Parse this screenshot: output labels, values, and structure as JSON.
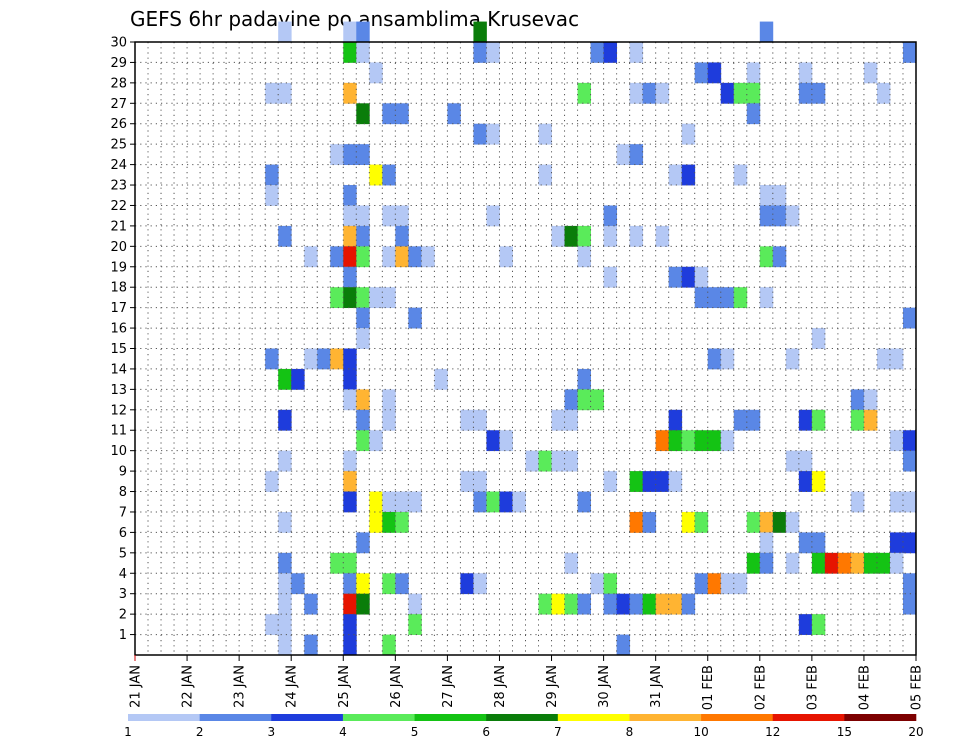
{
  "chart_data": {
    "type": "heatmap",
    "title": "GEFS 6hr padavine po ansamblima Krusevac",
    "y_ticks": [
      "1",
      "2",
      "3",
      "4",
      "5",
      "6",
      "7",
      "8",
      "9",
      "10",
      "11",
      "12",
      "13",
      "14",
      "15",
      "16",
      "17",
      "18",
      "19",
      "20",
      "21",
      "22",
      "23",
      "24",
      "25",
      "26",
      "27",
      "28",
      "29",
      "30"
    ],
    "x_ticks": [
      "21 JAN",
      "22 JAN",
      "23 JAN",
      "24 JAN",
      "25 JAN",
      "26 JAN",
      "27 JAN",
      "28 JAN",
      "29 JAN",
      "30 JAN",
      "31 JAN",
      "01 FEB",
      "02 FEB",
      "03 FEB",
      "04 FEB",
      "05 FEB"
    ],
    "y_range": [
      0,
      30
    ],
    "x_range": [
      0,
      60
    ],
    "grid": true,
    "colorbar": {
      "labels": [
        "1",
        "2",
        "3",
        "4",
        "5",
        "6",
        "7",
        "8",
        "10",
        "12",
        "15",
        "20"
      ],
      "colors": [
        "#b4c8f5",
        "#5a87e6",
        "#1e3cdc",
        "#5aeb5a",
        "#14c314",
        "#0a7d0a",
        "#ffff00",
        "#ffb432",
        "#ff7800",
        "#e61400",
        "#7d0000"
      ]
    },
    "cells": [
      [
        30,
        11,
        1
      ],
      [
        30,
        16,
        1
      ],
      [
        30,
        17,
        2
      ],
      [
        30,
        26,
        6
      ],
      [
        30,
        48,
        2
      ],
      [
        29,
        16,
        5
      ],
      [
        29,
        17,
        1
      ],
      [
        29,
        26,
        2
      ],
      [
        29,
        27,
        1
      ],
      [
        29,
        35,
        2
      ],
      [
        29,
        36,
        3
      ],
      [
        29,
        38,
        1
      ],
      [
        29,
        59,
        2
      ],
      [
        28,
        18,
        1
      ],
      [
        28,
        43,
        2
      ],
      [
        28,
        44,
        3
      ],
      [
        28,
        47,
        1
      ],
      [
        28,
        51,
        1
      ],
      [
        28,
        56,
        1
      ],
      [
        27,
        10,
        1
      ],
      [
        27,
        11,
        1
      ],
      [
        27,
        16,
        8
      ],
      [
        27,
        34,
        4
      ],
      [
        27,
        38,
        1
      ],
      [
        27,
        39,
        2
      ],
      [
        27,
        40,
        1
      ],
      [
        27,
        45,
        3
      ],
      [
        27,
        46,
        4
      ],
      [
        27,
        47,
        4
      ],
      [
        27,
        51,
        2
      ],
      [
        27,
        52,
        2
      ],
      [
        27,
        57,
        1
      ],
      [
        26,
        17,
        6
      ],
      [
        26,
        19,
        2
      ],
      [
        26,
        20,
        2
      ],
      [
        26,
        24,
        2
      ],
      [
        26,
        47,
        2
      ],
      [
        25,
        26,
        2
      ],
      [
        25,
        27,
        1
      ],
      [
        25,
        31,
        1
      ],
      [
        25,
        42,
        1
      ],
      [
        24,
        15,
        1
      ],
      [
        24,
        16,
        2
      ],
      [
        24,
        17,
        2
      ],
      [
        24,
        37,
        1
      ],
      [
        24,
        38,
        2
      ],
      [
        23,
        10,
        2
      ],
      [
        23,
        18,
        7
      ],
      [
        23,
        19,
        2
      ],
      [
        23,
        31,
        1
      ],
      [
        23,
        41,
        1
      ],
      [
        23,
        42,
        3
      ],
      [
        23,
        46,
        1
      ],
      [
        22,
        10,
        1
      ],
      [
        22,
        16,
        2
      ],
      [
        22,
        48,
        1
      ],
      [
        22,
        49,
        1
      ],
      [
        21,
        16,
        1
      ],
      [
        21,
        17,
        1
      ],
      [
        21,
        19,
        1
      ],
      [
        21,
        20,
        1
      ],
      [
        21,
        27,
        1
      ],
      [
        21,
        36,
        2
      ],
      [
        21,
        48,
        2
      ],
      [
        21,
        49,
        2
      ],
      [
        21,
        50,
        1
      ],
      [
        20,
        11,
        2
      ],
      [
        20,
        16,
        8
      ],
      [
        20,
        17,
        2
      ],
      [
        20,
        20,
        2
      ],
      [
        20,
        32,
        1
      ],
      [
        20,
        33,
        6
      ],
      [
        20,
        34,
        4
      ],
      [
        20,
        36,
        1
      ],
      [
        20,
        38,
        1
      ],
      [
        20,
        40,
        1
      ],
      [
        19,
        13,
        1
      ],
      [
        19,
        15,
        2
      ],
      [
        19,
        16,
        10
      ],
      [
        19,
        17,
        4
      ],
      [
        19,
        19,
        1
      ],
      [
        19,
        20,
        8
      ],
      [
        19,
        21,
        2
      ],
      [
        19,
        22,
        1
      ],
      [
        19,
        28,
        1
      ],
      [
        19,
        34,
        1
      ],
      [
        19,
        48,
        4
      ],
      [
        19,
        49,
        2
      ],
      [
        18,
        16,
        2
      ],
      [
        18,
        36,
        1
      ],
      [
        18,
        41,
        2
      ],
      [
        18,
        42,
        3
      ],
      [
        18,
        43,
        1
      ],
      [
        17,
        15,
        4
      ],
      [
        17,
        16,
        6
      ],
      [
        17,
        17,
        4
      ],
      [
        17,
        18,
        1
      ],
      [
        17,
        19,
        1
      ],
      [
        17,
        43,
        2
      ],
      [
        17,
        44,
        2
      ],
      [
        17,
        45,
        2
      ],
      [
        17,
        46,
        4
      ],
      [
        17,
        48,
        1
      ],
      [
        16,
        17,
        2
      ],
      [
        16,
        21,
        2
      ],
      [
        16,
        59,
        2
      ],
      [
        15,
        17,
        1
      ],
      [
        15,
        52,
        1
      ],
      [
        14,
        10,
        2
      ],
      [
        14,
        13,
        1
      ],
      [
        14,
        14,
        2
      ],
      [
        14,
        15,
        8
      ],
      [
        14,
        16,
        3
      ],
      [
        14,
        44,
        2
      ],
      [
        14,
        45,
        1
      ],
      [
        14,
        50,
        1
      ],
      [
        14,
        57,
        1
      ],
      [
        14,
        58,
        1
      ],
      [
        13,
        11,
        5
      ],
      [
        13,
        12,
        3
      ],
      [
        13,
        16,
        3
      ],
      [
        13,
        23,
        1
      ],
      [
        13,
        34,
        2
      ],
      [
        12,
        16,
        1
      ],
      [
        12,
        17,
        8
      ],
      [
        12,
        19,
        1
      ],
      [
        12,
        33,
        2
      ],
      [
        12,
        34,
        4
      ],
      [
        12,
        35,
        4
      ],
      [
        12,
        55,
        2
      ],
      [
        12,
        56,
        1
      ],
      [
        11,
        11,
        3
      ],
      [
        11,
        17,
        2
      ],
      [
        11,
        19,
        1
      ],
      [
        11,
        25,
        1
      ],
      [
        11,
        26,
        1
      ],
      [
        11,
        32,
        1
      ],
      [
        11,
        33,
        1
      ],
      [
        11,
        41,
        3
      ],
      [
        11,
        46,
        2
      ],
      [
        11,
        47,
        2
      ],
      [
        11,
        51,
        3
      ],
      [
        11,
        52,
        4
      ],
      [
        11,
        55,
        4
      ],
      [
        11,
        56,
        8
      ],
      [
        10,
        17,
        4
      ],
      [
        10,
        18,
        1
      ],
      [
        10,
        27,
        3
      ],
      [
        10,
        28,
        1
      ],
      [
        10,
        40,
        9
      ],
      [
        10,
        41,
        5
      ],
      [
        10,
        42,
        4
      ],
      [
        10,
        43,
        5
      ],
      [
        10,
        44,
        5
      ],
      [
        10,
        45,
        1
      ],
      [
        10,
        58,
        1
      ],
      [
        10,
        59,
        3
      ],
      [
        9,
        11,
        1
      ],
      [
        9,
        16,
        1
      ],
      [
        9,
        30,
        1
      ],
      [
        9,
        31,
        4
      ],
      [
        9,
        32,
        1
      ],
      [
        9,
        33,
        1
      ],
      [
        9,
        50,
        1
      ],
      [
        9,
        51,
        1
      ],
      [
        9,
        59,
        2
      ],
      [
        8,
        10,
        1
      ],
      [
        8,
        16,
        8
      ],
      [
        8,
        25,
        1
      ],
      [
        8,
        26,
        1
      ],
      [
        8,
        36,
        1
      ],
      [
        8,
        38,
        5
      ],
      [
        8,
        39,
        3
      ],
      [
        8,
        40,
        3
      ],
      [
        8,
        41,
        1
      ],
      [
        8,
        51,
        3
      ],
      [
        8,
        52,
        7
      ],
      [
        7,
        16,
        3
      ],
      [
        7,
        18,
        7
      ],
      [
        7,
        19,
        1
      ],
      [
        7,
        20,
        1
      ],
      [
        7,
        21,
        1
      ],
      [
        7,
        26,
        2
      ],
      [
        7,
        27,
        4
      ],
      [
        7,
        28,
        3
      ],
      [
        7,
        29,
        1
      ],
      [
        7,
        34,
        2
      ],
      [
        7,
        55,
        1
      ],
      [
        7,
        58,
        1
      ],
      [
        7,
        59,
        1
      ],
      [
        6,
        11,
        1
      ],
      [
        6,
        18,
        7
      ],
      [
        6,
        19,
        5
      ],
      [
        6,
        20,
        4
      ],
      [
        6,
        38,
        9
      ],
      [
        6,
        39,
        2
      ],
      [
        6,
        42,
        7
      ],
      [
        6,
        43,
        4
      ],
      [
        6,
        47,
        4
      ],
      [
        6,
        48,
        8
      ],
      [
        6,
        49,
        6
      ],
      [
        6,
        50,
        1
      ],
      [
        5,
        17,
        2
      ],
      [
        5,
        48,
        1
      ],
      [
        5,
        51,
        2
      ],
      [
        5,
        52,
        2
      ],
      [
        5,
        58,
        3
      ],
      [
        5,
        59,
        3
      ],
      [
        4,
        11,
        2
      ],
      [
        4,
        15,
        4
      ],
      [
        4,
        16,
        4
      ],
      [
        4,
        33,
        1
      ],
      [
        4,
        47,
        5
      ],
      [
        4,
        48,
        2
      ],
      [
        4,
        50,
        1
      ],
      [
        4,
        52,
        5
      ],
      [
        4,
        53,
        10
      ],
      [
        4,
        54,
        9
      ],
      [
        4,
        55,
        8
      ],
      [
        4,
        56,
        5
      ],
      [
        4,
        57,
        5
      ],
      [
        4,
        58,
        1
      ],
      [
        3,
        11,
        1
      ],
      [
        3,
        12,
        2
      ],
      [
        3,
        16,
        2
      ],
      [
        3,
        17,
        7
      ],
      [
        3,
        19,
        4
      ],
      [
        3,
        20,
        2
      ],
      [
        3,
        25,
        3
      ],
      [
        3,
        26,
        1
      ],
      [
        3,
        35,
        1
      ],
      [
        3,
        36,
        4
      ],
      [
        3,
        43,
        2
      ],
      [
        3,
        44,
        9
      ],
      [
        3,
        45,
        1
      ],
      [
        3,
        46,
        1
      ],
      [
        3,
        59,
        2
      ],
      [
        2,
        11,
        1
      ],
      [
        2,
        13,
        2
      ],
      [
        2,
        16,
        10
      ],
      [
        2,
        17,
        6
      ],
      [
        2,
        21,
        1
      ],
      [
        2,
        31,
        4
      ],
      [
        2,
        32,
        7
      ],
      [
        2,
        33,
        4
      ],
      [
        2,
        34,
        2
      ],
      [
        2,
        36,
        2
      ],
      [
        2,
        37,
        3
      ],
      [
        2,
        38,
        2
      ],
      [
        2,
        39,
        5
      ],
      [
        2,
        40,
        8
      ],
      [
        2,
        41,
        8
      ],
      [
        2,
        42,
        2
      ],
      [
        2,
        59,
        2
      ],
      [
        1,
        10,
        1
      ],
      [
        1,
        11,
        1
      ],
      [
        1,
        16,
        3
      ],
      [
        1,
        21,
        4
      ],
      [
        1,
        51,
        3
      ],
      [
        1,
        52,
        4
      ],
      [
        0,
        11,
        1
      ],
      [
        0,
        13,
        2
      ],
      [
        0,
        16,
        3
      ],
      [
        0,
        19,
        4
      ],
      [
        0,
        37,
        2
      ]
    ]
  }
}
